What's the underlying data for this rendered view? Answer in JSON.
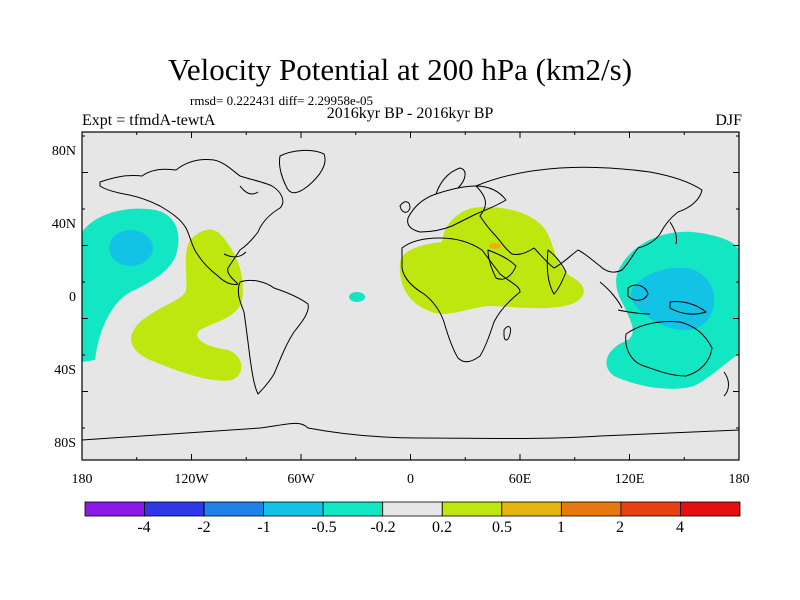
{
  "title": "Velocity Potential at 200 hPa (km2/s)",
  "stats": "rmsd= 0.222431 diff= 2.29958e-05",
  "experiment": "Expt = tfmdA-tewtA",
  "period": "2016kyr BP - 2016kyr BP",
  "season": "DJF",
  "map": {
    "lon_labels": [
      "180",
      "120W",
      "60W",
      "0",
      "60E",
      "120E",
      "180"
    ],
    "lat_labels": [
      "80N",
      "40N",
      "0",
      "40S",
      "80S"
    ],
    "lon_range": [
      -180,
      180
    ],
    "lat_range": [
      -90,
      90
    ],
    "ocean_color": "#e6e6e6"
  },
  "colorbar": {
    "colors": [
      "#8b1ae6",
      "#2f37e6",
      "#1e82e6",
      "#12c3e6",
      "#12e6c3",
      "#e6e6e6",
      "#bee60f",
      "#e6b40f",
      "#e6780f",
      "#e6410f",
      "#e60f0f"
    ],
    "labels": [
      "-4",
      "-2",
      "-1",
      "-0.5",
      "-0.2",
      "0.2",
      "0.5",
      "1",
      "2",
      "4"
    ]
  }
}
